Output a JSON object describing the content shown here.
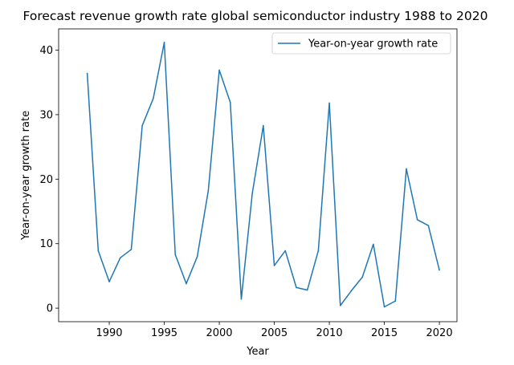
{
  "chart_data": {
    "type": "line",
    "title": "Forecast revenue growth rate global semiconductor industry 1988 to 2020",
    "xlabel": "Year",
    "ylabel": "Year-on-year growth rate",
    "xlim": [
      1985.4,
      2021.6
    ],
    "ylim": [
      -2.1,
      43.3
    ],
    "xticks": [
      1990,
      1995,
      2000,
      2005,
      2010,
      2015,
      2020
    ],
    "yticks": [
      0,
      10,
      20,
      30,
      40
    ],
    "grid": false,
    "legend_position": "top-right",
    "colors": {
      "series": "#1f77b4"
    },
    "x": [
      1988,
      1989,
      1990,
      1991,
      1992,
      1993,
      1994,
      1995,
      1996,
      1997,
      1998,
      1999,
      2000,
      2001,
      2002,
      2003,
      2004,
      2005,
      2006,
      2007,
      2008,
      2009,
      2010,
      2011,
      2012,
      2013,
      2014,
      2015,
      2016,
      2017,
      2018,
      2019,
      2020
    ],
    "series": [
      {
        "name": "Year-on-year growth rate",
        "values": [
          36.4,
          8.9,
          4.1,
          7.8,
          9.1,
          28.3,
          32.5,
          41.2,
          8.3,
          3.8,
          8.0,
          18.2,
          36.9,
          31.9,
          1.4,
          17.8,
          28.3,
          6.6,
          8.9,
          3.2,
          2.8,
          8.9,
          31.8,
          0.4,
          2.7,
          4.8,
          9.9,
          0.2,
          1.1,
          21.6,
          13.7,
          12.8,
          5.9
        ]
      }
    ]
  }
}
